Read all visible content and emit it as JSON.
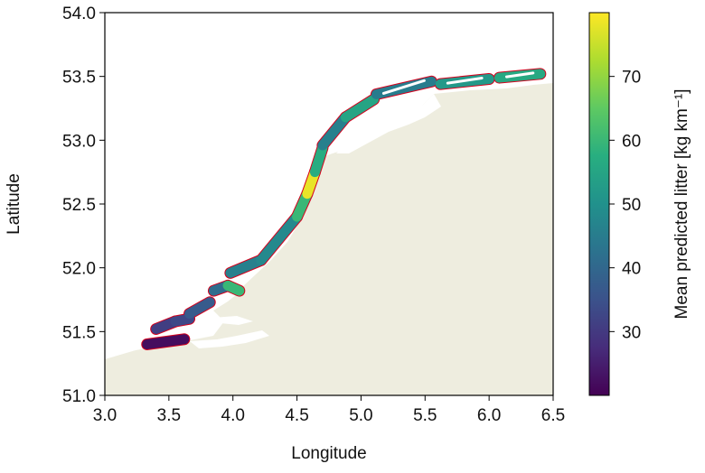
{
  "map": {
    "xlabel": "Longitude",
    "ylabel": "Latitude",
    "xlim": [
      3.0,
      6.5
    ],
    "ylim": [
      51.0,
      54.0
    ],
    "xticks": [
      "3.0",
      "3.5",
      "4.0",
      "4.5",
      "5.0",
      "5.5",
      "6.0",
      "6.5"
    ],
    "yticks": [
      "51.0",
      "51.5",
      "52.0",
      "52.5",
      "53.0",
      "53.5",
      "54.0"
    ],
    "land_color": "#eeeddf",
    "sea_color": "#ffffff",
    "outline_color": "#d6001c",
    "coast_segments": [
      {
        "lon1": 3.33,
        "lat1": 51.4,
        "lon2": 3.62,
        "lat2": 51.44,
        "value": 22
      },
      {
        "lon1": 3.4,
        "lat1": 51.52,
        "lon2": 3.55,
        "lat2": 51.58,
        "value": 31
      },
      {
        "lon1": 3.55,
        "lat1": 51.58,
        "lon2": 3.66,
        "lat2": 51.6,
        "value": 33
      },
      {
        "lon1": 3.66,
        "lat1": 51.64,
        "lon2": 3.82,
        "lat2": 51.73,
        "value": 37
      },
      {
        "lon1": 3.85,
        "lat1": 51.82,
        "lon2": 3.96,
        "lat2": 51.86,
        "value": 41
      },
      {
        "lon1": 3.96,
        "lat1": 51.86,
        "lon2": 4.05,
        "lat2": 51.82,
        "value": 60
      },
      {
        "lon1": 3.98,
        "lat1": 51.96,
        "lon2": 4.22,
        "lat2": 52.06,
        "value": 46
      },
      {
        "lon1": 4.22,
        "lat1": 52.06,
        "lon2": 4.5,
        "lat2": 52.4,
        "value": 48
      },
      {
        "lon1": 4.5,
        "lat1": 52.4,
        "lon2": 4.58,
        "lat2": 52.58,
        "value": 60
      },
      {
        "lon1": 4.58,
        "lat1": 52.58,
        "lon2": 4.64,
        "lat2": 52.75,
        "value": 78
      },
      {
        "lon1": 4.64,
        "lat1": 52.75,
        "lon2": 4.7,
        "lat2": 52.94,
        "value": 57
      },
      {
        "lon1": 4.7,
        "lat1": 52.96,
        "lon2": 4.88,
        "lat2": 53.18,
        "value": 46
      },
      {
        "lon1": 4.88,
        "lat1": 53.18,
        "lon2": 5.1,
        "lat2": 53.32,
        "value": 55
      },
      {
        "lon1": 5.12,
        "lat1": 53.36,
        "lon2": 5.55,
        "lat2": 53.46,
        "value": 45
      },
      {
        "lon1": 5.62,
        "lat1": 53.44,
        "lon2": 6.0,
        "lat2": 53.48,
        "value": 52
      },
      {
        "lon1": 6.08,
        "lat1": 53.49,
        "lon2": 6.4,
        "lat2": 53.52,
        "value": 56
      }
    ]
  },
  "colorbar": {
    "label": "Mean predicted litter [kg km⁻¹]",
    "min": 20,
    "max": 80,
    "ticks": [
      30,
      40,
      50,
      60,
      70
    ],
    "tick_labels": [
      "30",
      "40",
      "50",
      "60",
      "70"
    ],
    "colormap": [
      "#440154",
      "#472d7b",
      "#3b528b",
      "#2c728e",
      "#21918c",
      "#28ae80",
      "#5ec962",
      "#addc30",
      "#fde725"
    ]
  }
}
